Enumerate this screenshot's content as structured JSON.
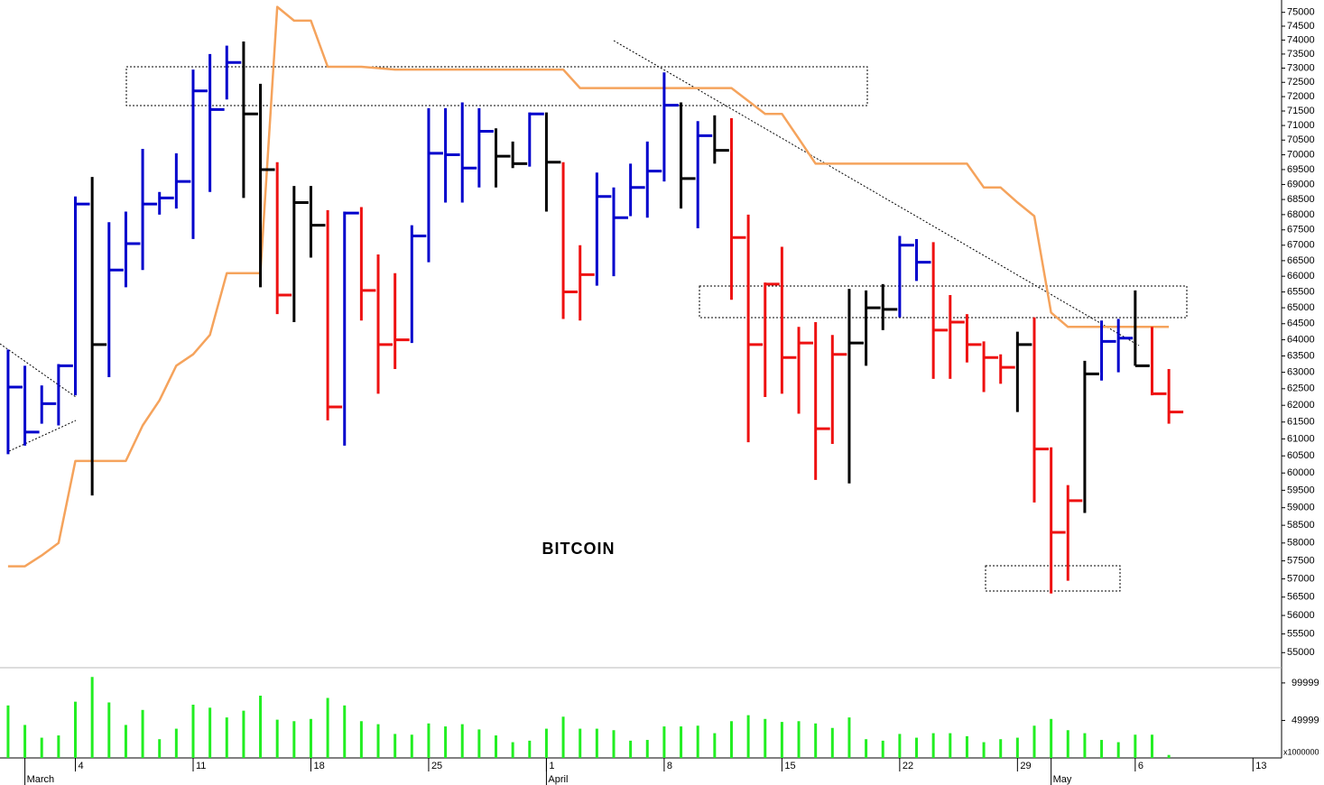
{
  "chart_data": {
    "type": "ohlc",
    "title": "BITCOIN",
    "log_scale": true,
    "grid": false,
    "x": [
      0,
      1,
      2,
      3,
      4,
      5,
      6,
      7,
      8,
      9,
      10,
      11,
      12,
      13,
      14,
      15,
      16,
      17,
      18,
      19,
      20,
      21,
      22,
      23,
      24,
      25,
      26,
      27,
      28,
      29,
      30,
      31,
      32,
      33,
      34,
      35,
      36,
      37,
      38,
      39,
      40,
      41,
      42,
      43,
      44,
      45,
      46,
      47,
      48,
      49,
      50,
      51,
      52,
      53,
      54,
      55,
      56,
      57,
      58,
      59,
      60,
      61,
      62,
      63,
      64,
      65,
      66,
      67,
      68,
      69
    ],
    "high": [
      63700,
      63200,
      62600,
      63250,
      68600,
      69250,
      67750,
      68100,
      70200,
      68750,
      70050,
      72950,
      73500,
      73800,
      73950,
      72450,
      69750,
      68950,
      68950,
      68150,
      68100,
      68250,
      66700,
      66100,
      67650,
      71600,
      71600,
      71800,
      71600,
      70900,
      70450,
      71450,
      71450,
      69750,
      67000,
      69400,
      68900,
      69700,
      70450,
      72850,
      71800,
      71150,
      71350,
      71250,
      68000,
      65800,
      66950,
      64400,
      64550,
      64150,
      65600,
      65550,
      65750,
      67300,
      67200,
      67100,
      65400,
      64800,
      63950,
      63550,
      64250,
      64700,
      60750,
      59650,
      63350,
      64600,
      64650,
      65550,
      64400,
      63100
    ],
    "low": [
      60550,
      60800,
      61450,
      61400,
      62300,
      59350,
      62850,
      65650,
      66200,
      68000,
      68200,
      67200,
      68750,
      71900,
      68550,
      65650,
      64800,
      64550,
      66600,
      61550,
      60800,
      64600,
      62350,
      63100,
      63900,
      66450,
      68400,
      68400,
      68900,
      68900,
      69550,
      69600,
      68100,
      64650,
      64600,
      65700,
      66000,
      67950,
      67900,
      69100,
      68200,
      67550,
      69700,
      65250,
      60900,
      62250,
      62350,
      61750,
      59800,
      60850,
      59700,
      63200,
      64300,
      64700,
      65850,
      62800,
      62800,
      63300,
      62400,
      62650,
      61800,
      59150,
      56600,
      56950,
      58850,
      62750,
      63000,
      63200,
      62300,
      61450
    ],
    "close": [
      62550,
      61200,
      62050,
      63200,
      68350,
      63850,
      66200,
      67050,
      68350,
      68550,
      69100,
      72200,
      71550,
      73200,
      71400,
      69500,
      65400,
      68400,
      67650,
      61950,
      68050,
      65550,
      63850,
      64000,
      67300,
      70050,
      70000,
      69550,
      70800,
      69950,
      69700,
      71400,
      69750,
      65500,
      66050,
      68600,
      67900,
      68900,
      69450,
      71700,
      69200,
      70650,
      70150,
      67250,
      63850,
      65750,
      63450,
      63900,
      61300,
      63550,
      63900,
      65000,
      64950,
      67000,
      66450,
      64300,
      64550,
      63850,
      63450,
      63150,
      63850,
      60700,
      58300,
      59200,
      62950,
      63950,
      64050,
      63200,
      62350,
      61800
    ],
    "colors": [
      "#0000cc",
      "#0000cc",
      "#0000cc",
      "#0000cc",
      "#0000cc",
      "#000000",
      "#0000cc",
      "#0000cc",
      "#0000cc",
      "#0000cc",
      "#0000cc",
      "#0000cc",
      "#0000cc",
      "#0000cc",
      "#000000",
      "#000000",
      "#ee1111",
      "#000000",
      "#000000",
      "#ee1111",
      "#0000cc",
      "#ee1111",
      "#ee1111",
      "#ee1111",
      "#0000cc",
      "#0000cc",
      "#0000cc",
      "#0000cc",
      "#0000cc",
      "#000000",
      "#000000",
      "#0000cc",
      "#000000",
      "#ee1111",
      "#ee1111",
      "#0000cc",
      "#0000cc",
      "#0000cc",
      "#0000cc",
      "#0000cc",
      "#000000",
      "#0000cc",
      "#000000",
      "#ee1111",
      "#ee1111",
      "#ee1111",
      "#ee1111",
      "#ee1111",
      "#ee1111",
      "#ee1111",
      "#000000",
      "#000000",
      "#000000",
      "#0000cc",
      "#0000cc",
      "#ee1111",
      "#ee1111",
      "#ee1111",
      "#ee1111",
      "#ee1111",
      "#000000",
      "#ee1111",
      "#ee1111",
      "#ee1111",
      "#000000",
      "#0000cc",
      "#0000cc",
      "#000000",
      "#ee1111",
      "#ee1111"
    ],
    "overlay": {
      "type": "line",
      "color": "#f5a35c",
      "values": [
        57350,
        57350,
        57650,
        58000,
        60350,
        60350,
        60350,
        60350,
        61400,
        62150,
        63200,
        63550,
        64150,
        66100,
        66100,
        66100,
        75200,
        74700,
        74700,
        73050,
        73050,
        73050,
        73000,
        72950,
        72950,
        72950,
        72950,
        72950,
        72950,
        72950,
        72950,
        72950,
        72950,
        72950,
        72300,
        72300,
        72300,
        72300,
        72300,
        72300,
        72300,
        72300,
        72300,
        72300,
        71850,
        71400,
        71400,
        70550,
        69700,
        69700,
        69700,
        69700,
        69700,
        69700,
        69700,
        69700,
        69700,
        69700,
        68900,
        68900,
        68400,
        67950,
        64850,
        64400,
        64400,
        64400,
        64400,
        64400,
        64400,
        64400
      ]
    },
    "ylim": [
      54600,
      75450
    ],
    "yticks": [
      75000,
      74500,
      74000,
      73500,
      73000,
      72500,
      72000,
      71500,
      71000,
      70500,
      70000,
      69500,
      69000,
      68500,
      68000,
      67500,
      67000,
      66500,
      66000,
      65500,
      65000,
      64500,
      64000,
      63500,
      63000,
      62500,
      62000,
      61500,
      61000,
      60500,
      60000,
      59500,
      59000,
      58500,
      58000,
      57500,
      57000,
      56500,
      56000,
      55500,
      55000
    ],
    "xlim": [
      -0.48,
      75.7
    ],
    "xticks": [
      4,
      11,
      18,
      25,
      {
        "value": 32,
        "label": "1"
      },
      {
        "value": 39,
        "label": "8"
      },
      {
        "value": 46,
        "label": "15"
      },
      {
        "value": 53,
        "label": "22"
      },
      {
        "value": 60,
        "label": "29"
      },
      {
        "value": 67,
        "label": "6"
      },
      {
        "value": 74,
        "label": "13"
      }
    ],
    "month_ticks": [
      {
        "value": 1,
        "label": "March"
      },
      {
        "value": 32,
        "label": "April"
      },
      {
        "value": 62,
        "label": "May"
      }
    ],
    "volume": {
      "color": "#22ee22",
      "ylim": [
        0,
        117900
      ],
      "yticks": [
        99999,
        49999
      ],
      "unit_label": "x1000000",
      "values": [
        70000,
        44000,
        27000,
        30000,
        75000,
        108000,
        74000,
        44000,
        64000,
        25000,
        39000,
        71000,
        67000,
        54000,
        63000,
        83000,
        51000,
        49000,
        52000,
        80000,
        70000,
        49000,
        45000,
        32000,
        31000,
        46000,
        42000,
        45000,
        38000,
        30000,
        21000,
        23000,
        39000,
        55000,
        39000,
        39000,
        37000,
        23000,
        24000,
        42000,
        42000,
        43000,
        33000,
        49000,
        57000,
        52000,
        48000,
        49000,
        46000,
        40000,
        54000,
        25000,
        23000,
        32000,
        27000,
        33000,
        33000,
        29000,
        21000,
        25000,
        27000,
        43000,
        52000,
        37000,
        33000,
        24000,
        21000,
        31000,
        31000,
        4000
      ]
    }
  }
}
